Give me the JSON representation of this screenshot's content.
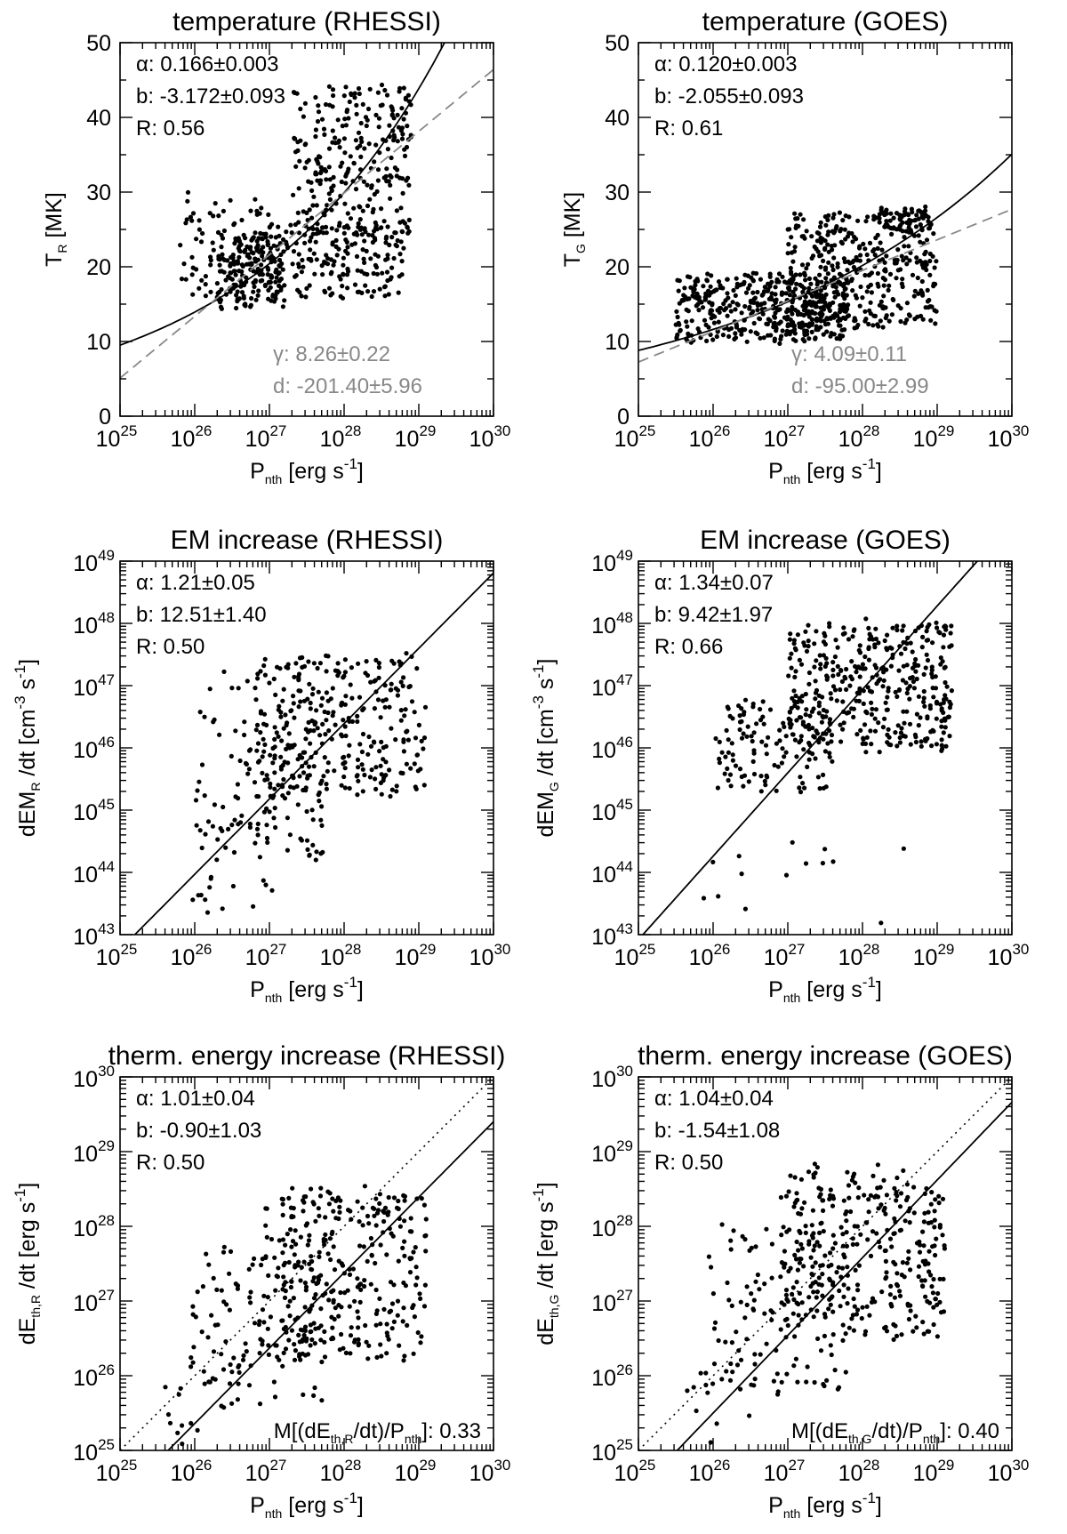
{
  "chart_data": [
    {
      "type": "scatter",
      "title": "temperature (RHESSI)",
      "xlabel": {
        "base": "P",
        "sub": "nth",
        "unit": "[erg s",
        "unit_sup": "-1",
        "unit_end": "]"
      },
      "ylabel": {
        "base": "T",
        "sub": "R",
        "unit": "[MK]"
      },
      "xscale": "log",
      "xlim": [
        1e+25,
        1e+30
      ],
      "yscale": "linear",
      "ylim": [
        0,
        50
      ],
      "yticks": [
        0,
        10,
        20,
        30,
        40,
        50
      ],
      "fits": {
        "solid": {
          "alpha": 0.166,
          "b": -3.172
        },
        "dashed": {
          "gamma": 8.26,
          "d": -201.4
        }
      },
      "stats": [
        "α: 0.166±0.003",
        "b: -3.172±0.093",
        "R: 0.56"
      ],
      "stats_gray": [
        "γ: 8.26±0.22",
        "d: -201.40±5.96"
      ],
      "clusters": [
        {
          "n": 170,
          "x": [
            26.3,
            27.2
          ],
          "y": [
            14.5,
            24
          ],
          "seed": 11
        },
        {
          "n": 200,
          "x": [
            27.0,
            28.8
          ],
          "y": [
            16,
            26
          ],
          "seed": 12
        },
        {
          "n": 260,
          "x": [
            27.3,
            28.9
          ],
          "y": [
            24,
            44
          ],
          "seed": 13
        },
        {
          "n": 80,
          "x": [
            25.8,
            27.0
          ],
          "y": [
            16,
            30
          ],
          "seed": 14
        }
      ]
    },
    {
      "type": "scatter",
      "title": "temperature (GOES)",
      "xlabel": {
        "base": "P",
        "sub": "nth",
        "unit": "[erg s",
        "unit_sup": "-1",
        "unit_end": "]"
      },
      "ylabel": {
        "base": "T",
        "sub": "G",
        "unit": "[MK]"
      },
      "xscale": "log",
      "xlim": [
        1e+25,
        1e+30
      ],
      "yscale": "linear",
      "ylim": [
        0,
        50
      ],
      "yticks": [
        0,
        10,
        20,
        30,
        40,
        50
      ],
      "fits": {
        "solid": {
          "alpha": 0.12,
          "b": -2.055
        },
        "dashed": {
          "gamma": 4.09,
          "d": -95.0
        }
      },
      "stats": [
        "α: 0.120±0.003",
        "b: -2.055±0.093",
        "R: 0.61"
      ],
      "stats_gray": [
        "γ: 4.09±0.11",
        "d: -95.00±2.99"
      ],
      "clusters": [
        {
          "n": 420,
          "x": [
            25.5,
            27.8
          ],
          "y": [
            10,
            19
          ],
          "seed": 21
        },
        {
          "n": 380,
          "x": [
            27.0,
            29.0
          ],
          "y": [
            12,
            27
          ],
          "seed": 22
        },
        {
          "n": 60,
          "x": [
            28.2,
            28.9
          ],
          "y": [
            25,
            28
          ],
          "seed": 23
        }
      ]
    },
    {
      "type": "scatter",
      "title": "EM increase (RHESSI)",
      "xlabel": {
        "base": "P",
        "sub": "nth",
        "unit": "[erg s",
        "unit_sup": "-1",
        "unit_end": "]"
      },
      "ylabel": {
        "base": "dEM",
        "sub": "R",
        "unit": "/dt [cm",
        "unit_sup": "-3",
        "unit_mid": " s",
        "unit_sup2": "-1",
        "unit_end": "]"
      },
      "xscale": "log",
      "xlim": [
        1e+25,
        1e+30
      ],
      "yscale": "log",
      "ylim": [
        1e+43,
        1e+49
      ],
      "fits": {
        "solid": {
          "alpha": 1.21,
          "b": 12.51
        }
      },
      "stats": [
        "α: 1.21±0.05",
        "b: 12.51±1.40",
        "R: 0.50"
      ],
      "clusters": [
        {
          "n": 300,
          "x": [
            26.8,
            29.1
          ],
          "y": [
            45.2,
            47.5
          ],
          "seed": 31
        },
        {
          "n": 110,
          "x": [
            26.0,
            27.8
          ],
          "y": [
            44.2,
            46.5
          ],
          "seed": 32
        },
        {
          "n": 20,
          "x": [
            25.9,
            27.1
          ],
          "y": [
            43.3,
            45.0
          ],
          "seed": 33
        },
        {
          "n": 12,
          "x": [
            26.2,
            27.4
          ],
          "y": [
            46.8,
            47.3
          ],
          "seed": 34
        }
      ]
    },
    {
      "type": "scatter",
      "title": "EM increase (GOES)",
      "xlabel": {
        "base": "P",
        "sub": "nth",
        "unit": "[erg s",
        "unit_sup": "-1",
        "unit_end": "]"
      },
      "ylabel": {
        "base": "dEM",
        "sub": "G",
        "unit": "/dt [cm",
        "unit_sup": "-3",
        "unit_mid": " s",
        "unit_sup2": "-1",
        "unit_end": "]"
      },
      "xscale": "log",
      "xlim": [
        1e+25,
        1e+30
      ],
      "yscale": "log",
      "ylim": [
        1e+43,
        1e+49
      ],
      "fits": {
        "solid": {
          "alpha": 1.34,
          "b": 9.42
        }
      },
      "stats": [
        "α: 1.34±0.07",
        "b: 9.42±1.97",
        "R: 0.66"
      ],
      "clusters": [
        {
          "n": 380,
          "x": [
            27.0,
            29.2
          ],
          "y": [
            46.0,
            48.0
          ],
          "seed": 41
        },
        {
          "n": 130,
          "x": [
            26.0,
            27.6
          ],
          "y": [
            45.3,
            46.8
          ],
          "seed": 42
        },
        {
          "n": 14,
          "x": [
            25.7,
            28.6
          ],
          "y": [
            43.2,
            44.6
          ],
          "seed": 43
        }
      ]
    },
    {
      "type": "scatter",
      "title": "therm. energy increase (RHESSI)",
      "xlabel": {
        "base": "P",
        "sub": "nth",
        "unit": "[erg s",
        "unit_sup": "-1",
        "unit_end": "]"
      },
      "ylabel": {
        "base": "dE",
        "sub": "th,R",
        "unit": "/dt [erg s",
        "unit_sup": "-1",
        "unit_end": "]"
      },
      "xscale": "log",
      "xlim": [
        1e+25,
        1e+30
      ],
      "yscale": "log",
      "ylim": [
        1e+25,
        1e+30
      ],
      "fits": {
        "solid": {
          "alpha": 1.01,
          "b": -0.9
        },
        "dotted": {
          "alpha": 1.0,
          "b": 0.0
        }
      },
      "stats": [
        "α: 1.01±0.04",
        "b: -0.90±1.03",
        "R: 0.50"
      ],
      "footer": {
        "text": "M[(dE",
        "sub": "th,R",
        "mid": "/dt)/P",
        "sub2": "nth",
        "end": "]: 0.33"
      },
      "clusters": [
        {
          "n": 320,
          "x": [
            26.9,
            29.1
          ],
          "y": [
            26.2,
            28.5
          ],
          "seed": 51
        },
        {
          "n": 120,
          "x": [
            25.9,
            27.8
          ],
          "y": [
            25.6,
            27.7
          ],
          "seed": 52
        },
        {
          "n": 10,
          "x": [
            25.6,
            26.5
          ],
          "y": [
            25.0,
            26.2
          ],
          "seed": 53
        }
      ]
    },
    {
      "type": "scatter",
      "title": "therm. energy increase (GOES)",
      "xlabel": {
        "base": "P",
        "sub": "nth",
        "unit": "[erg s",
        "unit_sup": "-1",
        "unit_end": "]"
      },
      "ylabel": {
        "base": "dE",
        "sub": "th,G",
        "unit": "/dt [erg s",
        "unit_sup": "-1",
        "unit_end": "]"
      },
      "xscale": "log",
      "xlim": [
        1e+25,
        1e+30
      ],
      "yscale": "log",
      "ylim": [
        1e+25,
        1e+30
      ],
      "fits": {
        "solid": {
          "alpha": 1.04,
          "b": -1.54
        },
        "dotted": {
          "alpha": 1.0,
          "b": 0.0
        }
      },
      "stats": [
        "α: 1.04±0.04",
        "b: -1.54±1.08",
        "R: 0.50"
      ],
      "footer": {
        "text": "M[(dE",
        "sub": "th,G",
        "mid": "/dt)/P",
        "sub2": "nth",
        "end": "]: 0.40"
      },
      "clusters": [
        {
          "n": 330,
          "x": [
            26.9,
            29.1
          ],
          "y": [
            26.5,
            28.8
          ],
          "seed": 61
        },
        {
          "n": 120,
          "x": [
            25.9,
            27.8
          ],
          "y": [
            25.8,
            28.0
          ],
          "seed": 62
        },
        {
          "n": 10,
          "x": [
            25.6,
            26.5
          ],
          "y": [
            25.0,
            26.0
          ],
          "seed": 63
        }
      ]
    }
  ]
}
